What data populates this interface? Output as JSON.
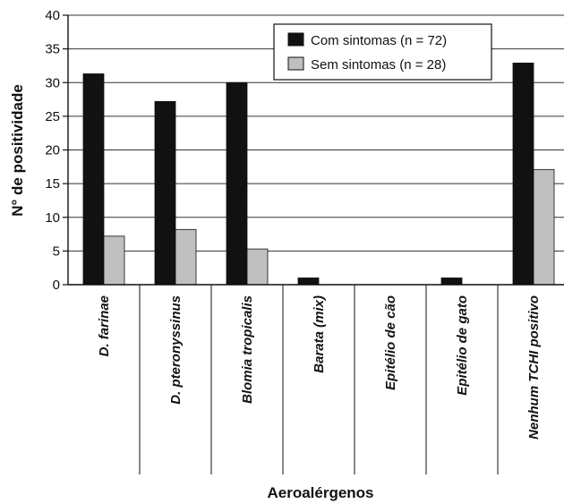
{
  "chart_data": {
    "type": "bar",
    "title": "",
    "xlabel": "Aeroalérgenos",
    "ylabel": "N° de positividade",
    "ylim": [
      0,
      40
    ],
    "yticks": [
      0,
      5,
      10,
      15,
      20,
      25,
      30,
      35,
      40
    ],
    "grid": true,
    "legend_position": "top-right",
    "categories": [
      "D. farinae",
      "D. pteronyssinus",
      "Blomia tropicalis",
      "Barata (mix)",
      "Epitélio de cão",
      "Epitélio de gato",
      "Nenhum TCHI positivo"
    ],
    "series": [
      {
        "name": "Com sintomas (n = 72)",
        "color": "#111111",
        "values": [
          31.3,
          27.2,
          30.0,
          1.0,
          0,
          1.0,
          32.9
        ]
      },
      {
        "name": "Sem sintomas (n = 28)",
        "color": "#bfbfbf",
        "values": [
          7.2,
          8.2,
          5.3,
          0,
          0,
          0,
          17.1
        ]
      }
    ]
  }
}
